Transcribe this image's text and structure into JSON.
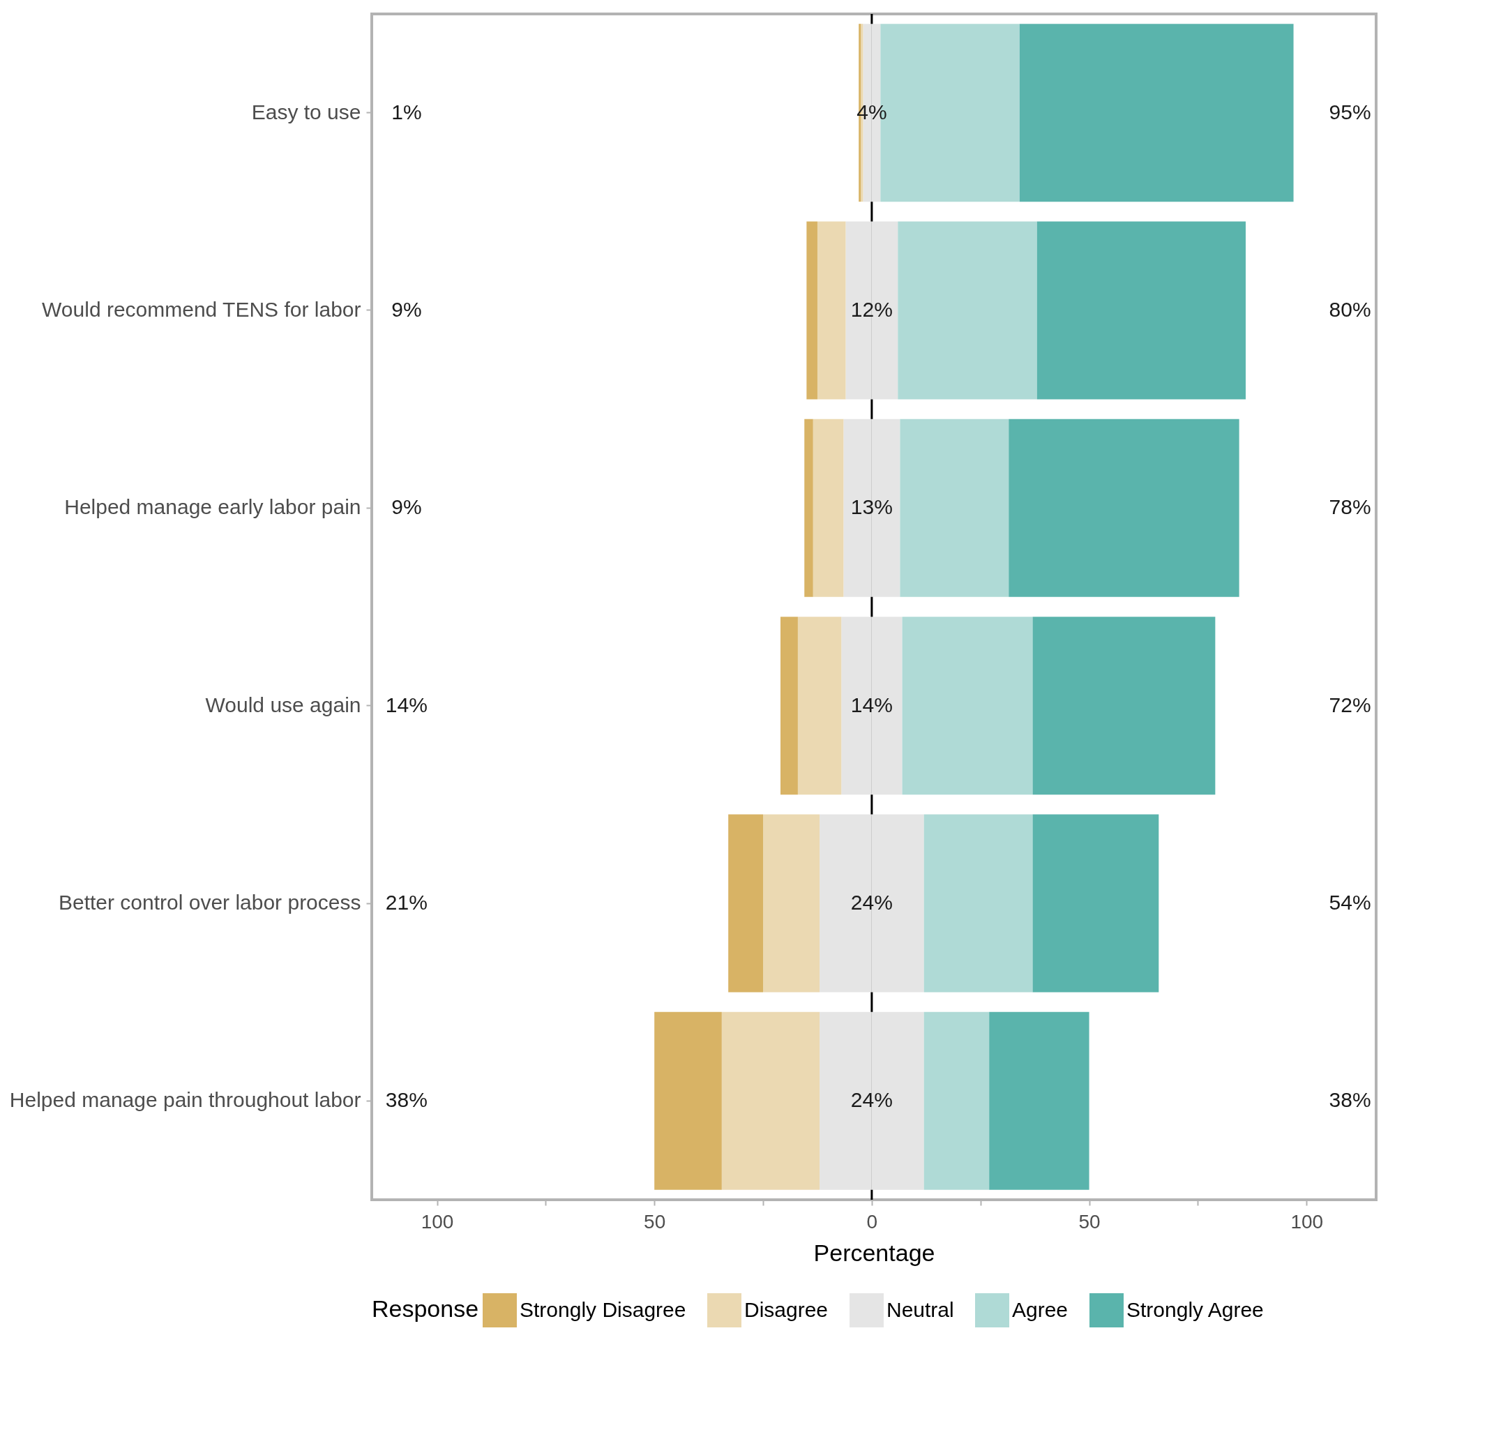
{
  "chart_data": {
    "type": "bar",
    "orientation": "horizontal",
    "stacked": true,
    "xlabel": "Percentage",
    "legend_title": "Response",
    "legend": "bottom",
    "categories": [
      "Easy to use",
      "Would recommend TENS for labor",
      "Helped manage early labor pain",
      "Would use again",
      "Better control over labor process",
      "Helped manage pain throughout labor"
    ],
    "series": [
      {
        "name": "Neutral",
        "color": "#e5e5e5",
        "values": [
          -2,
          -6,
          -6.5,
          -7,
          -12,
          -12
        ]
      },
      {
        "color": "#e5e5e5",
        "values": [
          2,
          6,
          6.5,
          7,
          12,
          12
        ]
      },
      {
        "name": "Disagree",
        "color": "#ebd9b2",
        "values": [
          -0.5,
          -6.5,
          -7,
          -10,
          -13,
          -22.5
        ]
      },
      {
        "name": "Strongly Disagree",
        "color": "#d8b365",
        "values": [
          -0.5,
          -2.5,
          -2,
          -4,
          -8,
          -15.5
        ]
      },
      {
        "name": "Agree",
        "color": "#afdad6",
        "values": [
          32,
          32,
          25,
          30,
          25,
          15
        ]
      },
      {
        "name": "Strongly Agree",
        "color": "#5ab4ac",
        "values": [
          63,
          48,
          53,
          42,
          29,
          23
        ]
      }
    ],
    "xlim": [
      -115,
      116
    ],
    "xticks": [
      {
        "value": -100,
        "label": "100"
      },
      {
        "value": -75,
        "label": null
      },
      {
        "value": -50,
        "label": "50"
      },
      {
        "value": -25,
        "label": null
      },
      0,
      {
        "value": 25,
        "label": null
      },
      50,
      {
        "value": 75,
        "label": null
      },
      100
    ],
    "ref_lines": [
      {
        "axis": "x",
        "value": 0,
        "color": "#000000"
      }
    ],
    "annotations": [
      "1%",
      "4%",
      "95%",
      "9%",
      "12%",
      "80%",
      "9%",
      "13%",
      "78%",
      "14%",
      "14%",
      "72%",
      "21%",
      "24%",
      "54%",
      "38%",
      "24%",
      "38%"
    ]
  }
}
